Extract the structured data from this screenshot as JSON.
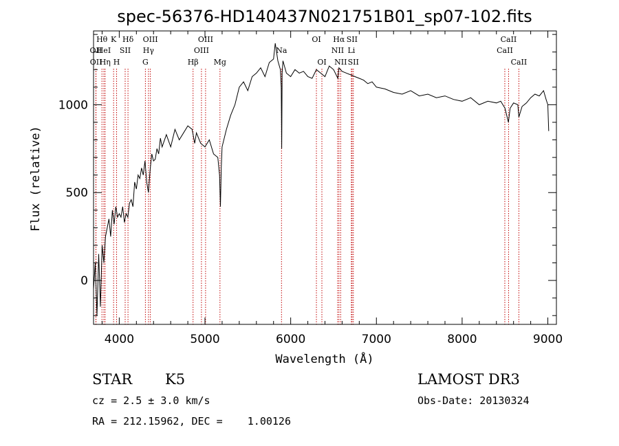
{
  "chart_data": {
    "type": "line",
    "title": "spec-56376-HD140437N021751B01_sp07-102.fits",
    "xlabel": "Wavelength (Å)",
    "ylabel": "Flux (relative)",
    "xlim": [
      3700,
      9100
    ],
    "ylim": [
      -250,
      1420
    ],
    "x_ticks": [
      4000,
      5000,
      6000,
      7000,
      8000,
      9000
    ],
    "y_ticks": [
      0,
      500,
      1000
    ],
    "series": [
      {
        "name": "flux",
        "x": [
          3700,
          3720,
          3740,
          3760,
          3780,
          3800,
          3820,
          3840,
          3860,
          3880,
          3900,
          3920,
          3940,
          3960,
          3980,
          4000,
          4020,
          4040,
          4060,
          4080,
          4100,
          4120,
          4140,
          4160,
          4180,
          4200,
          4220,
          4240,
          4260,
          4280,
          4300,
          4320,
          4340,
          4360,
          4380,
          4400,
          4420,
          4440,
          4460,
          4480,
          4500,
          4550,
          4600,
          4650,
          4700,
          4750,
          4800,
          4850,
          4880,
          4900,
          4950,
          5000,
          5050,
          5100,
          5150,
          5170,
          5180,
          5190,
          5200,
          5250,
          5300,
          5350,
          5400,
          5450,
          5500,
          5550,
          5600,
          5650,
          5700,
          5750,
          5800,
          5820,
          5850,
          5880,
          5890,
          5895,
          5900,
          5910,
          5950,
          6000,
          6050,
          6100,
          6150,
          6200,
          6250,
          6300,
          6350,
          6400,
          6450,
          6500,
          6550,
          6563,
          6600,
          6650,
          6700,
          6750,
          6800,
          6850,
          6900,
          6950,
          7000,
          7100,
          7200,
          7300,
          7400,
          7500,
          7600,
          7700,
          7800,
          7900,
          8000,
          8100,
          8200,
          8300,
          8400,
          8450,
          8500,
          8540,
          8560,
          8600,
          8650,
          8662,
          8700,
          8750,
          8800,
          8850,
          8900,
          8950,
          8980,
          9000,
          9010
        ],
        "y": [
          -50,
          100,
          -200,
          150,
          -150,
          200,
          100,
          250,
          300,
          350,
          250,
          400,
          320,
          420,
          360,
          380,
          360,
          420,
          330,
          380,
          360,
          440,
          460,
          420,
          560,
          520,
          600,
          580,
          640,
          600,
          680,
          560,
          500,
          630,
          720,
          680,
          690,
          750,
          720,
          810,
          760,
          830,
          760,
          860,
          800,
          840,
          880,
          860,
          780,
          840,
          780,
          760,
          800,
          720,
          700,
          600,
          420,
          640,
          760,
          860,
          940,
          1000,
          1100,
          1130,
          1080,
          1160,
          1180,
          1210,
          1160,
          1240,
          1260,
          1350,
          1250,
          1200,
          1100,
          750,
          1180,
          1250,
          1180,
          1160,
          1200,
          1180,
          1190,
          1160,
          1150,
          1200,
          1180,
          1160,
          1220,
          1200,
          1150,
          1210,
          1190,
          1180,
          1170,
          1160,
          1150,
          1140,
          1120,
          1130,
          1100,
          1090,
          1070,
          1060,
          1080,
          1050,
          1060,
          1040,
          1050,
          1030,
          1020,
          1040,
          1000,
          1020,
          1010,
          1020,
          980,
          900,
          980,
          1010,
          1000,
          930,
          990,
          1010,
          1040,
          1060,
          1050,
          1080,
          1030,
          1000,
          850
        ]
      }
    ],
    "spectral_lines": [
      {
        "label": "Hθ",
        "x": 3798,
        "row": 1
      },
      {
        "label": "OII",
        "x": 3727,
        "row": 2
      },
      {
        "label": "OII",
        "x": 3729,
        "row": 3
      },
      {
        "label": "K",
        "x": 3934,
        "row": 1
      },
      {
        "label": "HeI",
        "x": 3820,
        "row": 2
      },
      {
        "label": "Hη",
        "x": 3835,
        "row": 3
      },
      {
        "label": "Hδ",
        "x": 4102,
        "row": 1
      },
      {
        "label": "SII",
        "x": 4069,
        "row": 2
      },
      {
        "label": "H",
        "x": 3969,
        "row": 3
      },
      {
        "label": "OIII",
        "x": 4363,
        "row": 1
      },
      {
        "label": "Hγ",
        "x": 4341,
        "row": 2
      },
      {
        "label": "G",
        "x": 4305,
        "row": 3
      },
      {
        "label": "OIII",
        "x": 5007,
        "row": 1
      },
      {
        "label": "OIII",
        "x": 4959,
        "row": 2
      },
      {
        "label": "Hβ",
        "x": 4861,
        "row": 3
      },
      {
        "label": "Mg",
        "x": 5175,
        "row": 3
      },
      {
        "label": "Na",
        "x": 5893,
        "row": 2
      },
      {
        "label": "OI",
        "x": 6300,
        "row": 1
      },
      {
        "label": "OI",
        "x": 6364,
        "row": 3
      },
      {
        "label": "Hα",
        "x": 6563,
        "row": 1
      },
      {
        "label": "SII",
        "x": 6716,
        "row": 1
      },
      {
        "label": "NII",
        "x": 6548,
        "row": 2
      },
      {
        "label": "Li",
        "x": 6708,
        "row": 2
      },
      {
        "label": "NII",
        "x": 6583,
        "row": 3
      },
      {
        "label": "SII",
        "x": 6731,
        "row": 3
      },
      {
        "label": "CaII",
        "x": 8542,
        "row": 1
      },
      {
        "label": "CaII",
        "x": 8498,
        "row": 2
      },
      {
        "label": "CaII",
        "x": 8662,
        "row": 3
      }
    ]
  },
  "info": {
    "object_class": "STAR",
    "subclass": "K5",
    "redshift": "cz = 2.5 ± 3.0 km/s",
    "coords": "RA = 212.15962, DEC =    1.00126",
    "survey": "LAMOST DR3",
    "obs_date": "Obs-Date: 20130324"
  }
}
